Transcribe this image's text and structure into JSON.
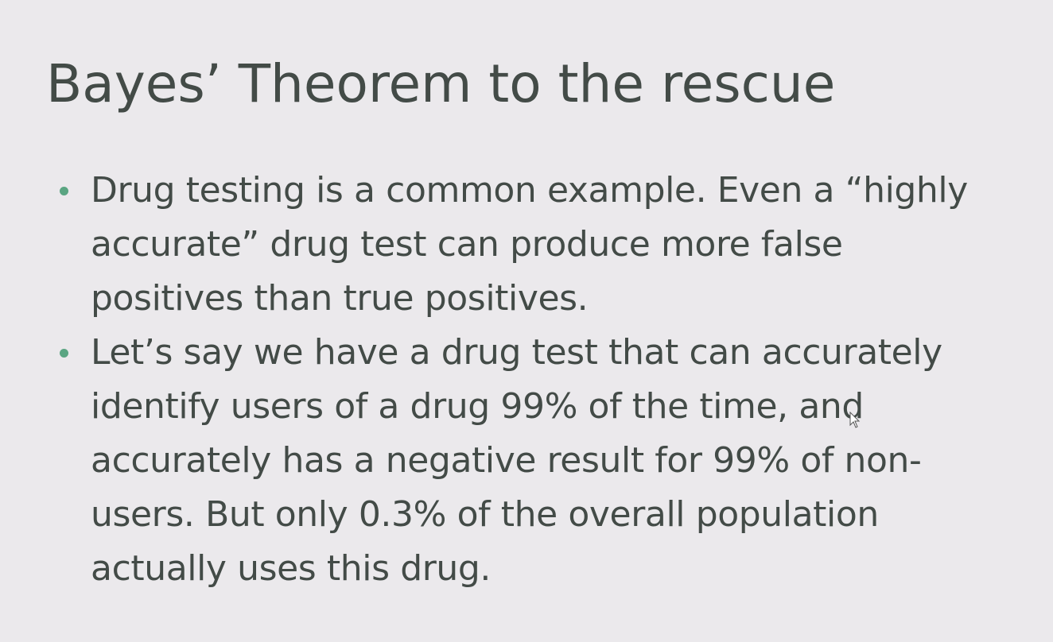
{
  "slide": {
    "title": "Bayes’ Theorem to the rescue",
    "bullets": [
      {
        "lines": [
          "Drug testing is a common example. Even a “highly",
          "accurate” drug test can produce more false",
          "positives than true positives."
        ]
      },
      {
        "lines": [
          "Let’s say we have a drug test that can accurately",
          "identify users of a drug 99% of the time, and",
          "accurately has a negative result for 99% of non-",
          "users. But only 0.3% of the overall population",
          "actually uses this drug."
        ]
      }
    ]
  },
  "colors": {
    "background": "#ebe9ec",
    "text": "#434b47",
    "bullet": "#5aa582"
  },
  "icons": {
    "cursor": "mouse-pointer-icon"
  }
}
